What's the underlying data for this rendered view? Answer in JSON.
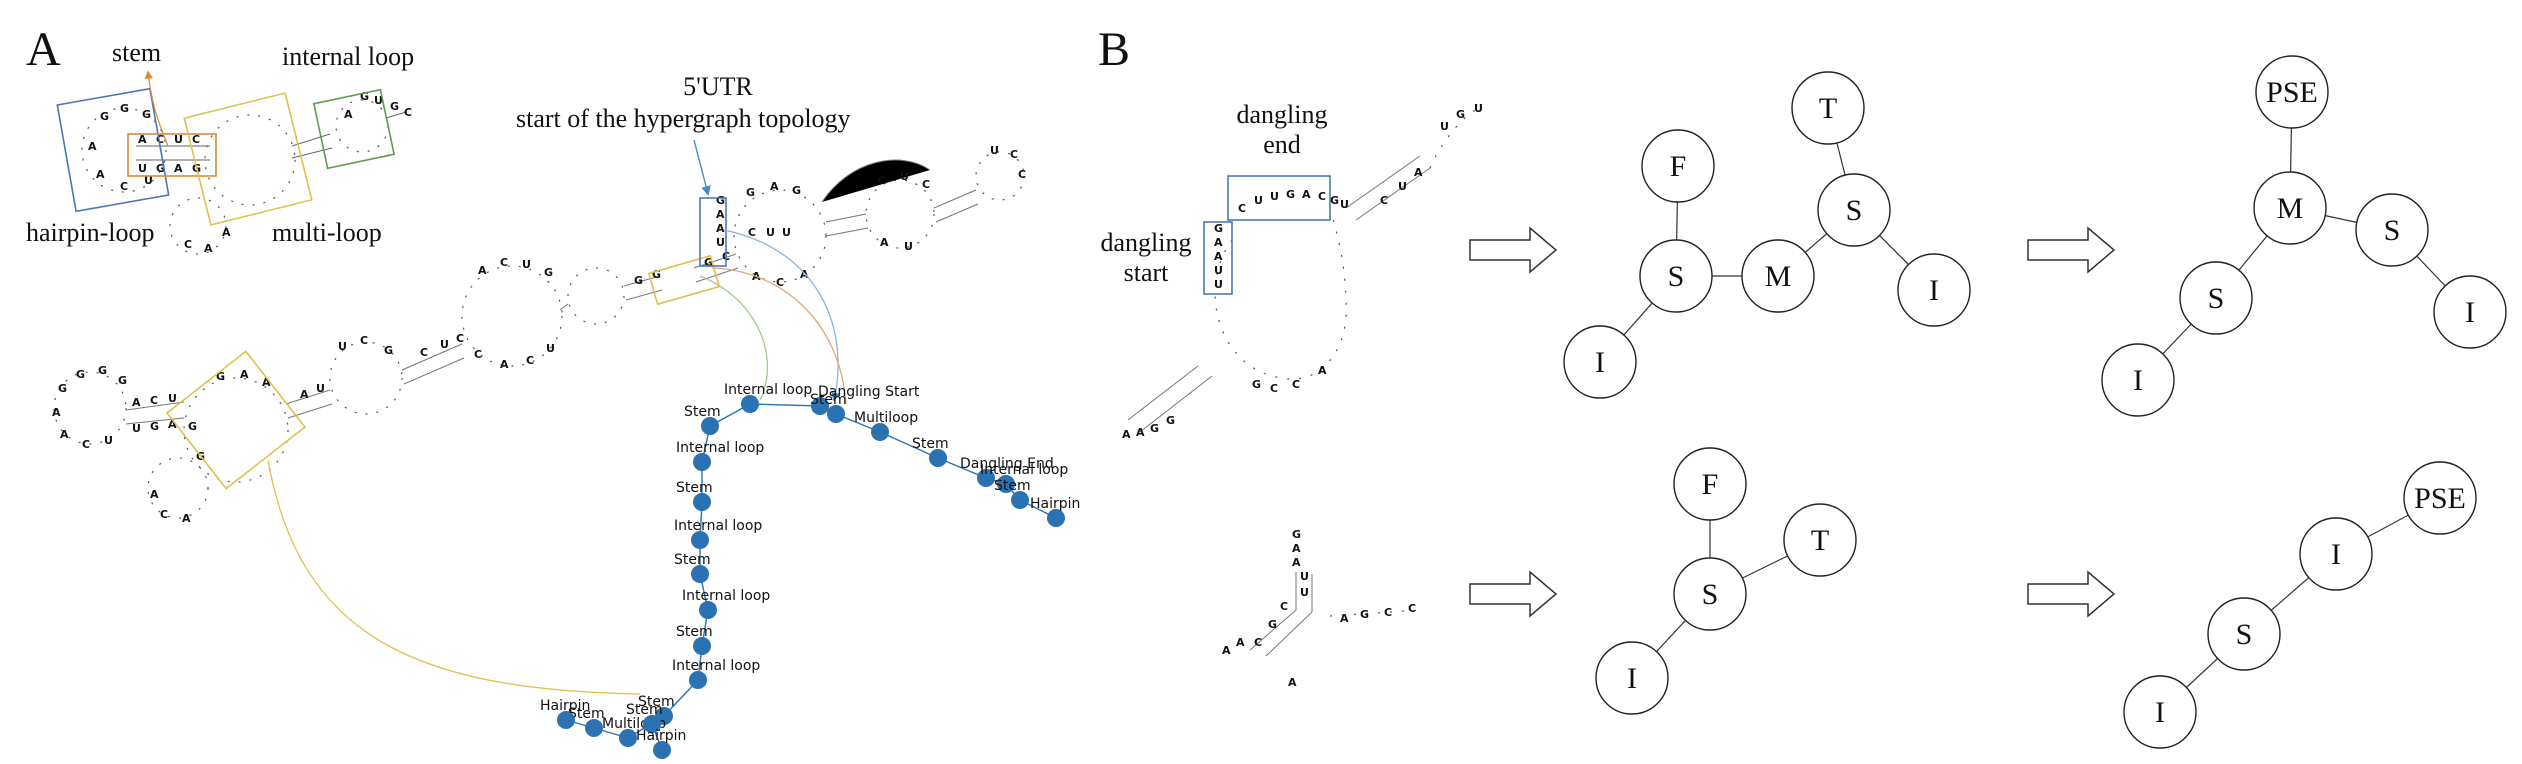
{
  "panels": {
    "a_label": "A",
    "b_label": "B"
  },
  "panel_a": {
    "inset_labels": {
      "stem": "stem",
      "internal_loop": "internal loop",
      "hairpin_loop": "hairpin-loop",
      "multi_loop": "multi-loop"
    },
    "utr_label": "5'UTR",
    "utr_sublabel": "start of the hypergraph topology",
    "inset_frame_colors": {
      "hairpin": "#4a78b5",
      "stem": "#d98b3a",
      "multi": "#e0c14e",
      "internal": "#5f9a4f"
    },
    "graph_node_color": "#2b72b3",
    "graph_nodes": [
      "Dangling Start",
      "Internal loop",
      "Stem",
      "Internal loop",
      "Stem",
      "Internal loop",
      "Stem",
      "Internal loop",
      "Stem",
      "Internal loop",
      "Stem",
      "Multiloop",
      "Stem",
      "Hairpin",
      "Stem",
      "Hairpin",
      "Stem",
      "Multiloop",
      "Stem",
      "Dangling End",
      "Internal loop",
      "Stem",
      "Hairpin"
    ]
  },
  "panel_b": {
    "dangling_end": "dangling\nend",
    "dangling_start": "dangling\nstart",
    "top_tree_1": {
      "nodes": [
        "F",
        "S",
        "M",
        "T",
        "S",
        "I",
        "I"
      ]
    },
    "top_tree_2": {
      "nodes": [
        "PSE",
        "M",
        "S",
        "S",
        "I",
        "I"
      ]
    },
    "bottom_tree_1": {
      "nodes": [
        "F",
        "S",
        "T",
        "I"
      ]
    },
    "bottom_tree_2": {
      "nodes": [
        "PSE",
        "I",
        "S",
        "I"
      ]
    },
    "snippet_top_nt": "G A A U U C U U G A C G U A",
    "snippet_bottom_nt": "G A A U U G C G C A G C C"
  }
}
